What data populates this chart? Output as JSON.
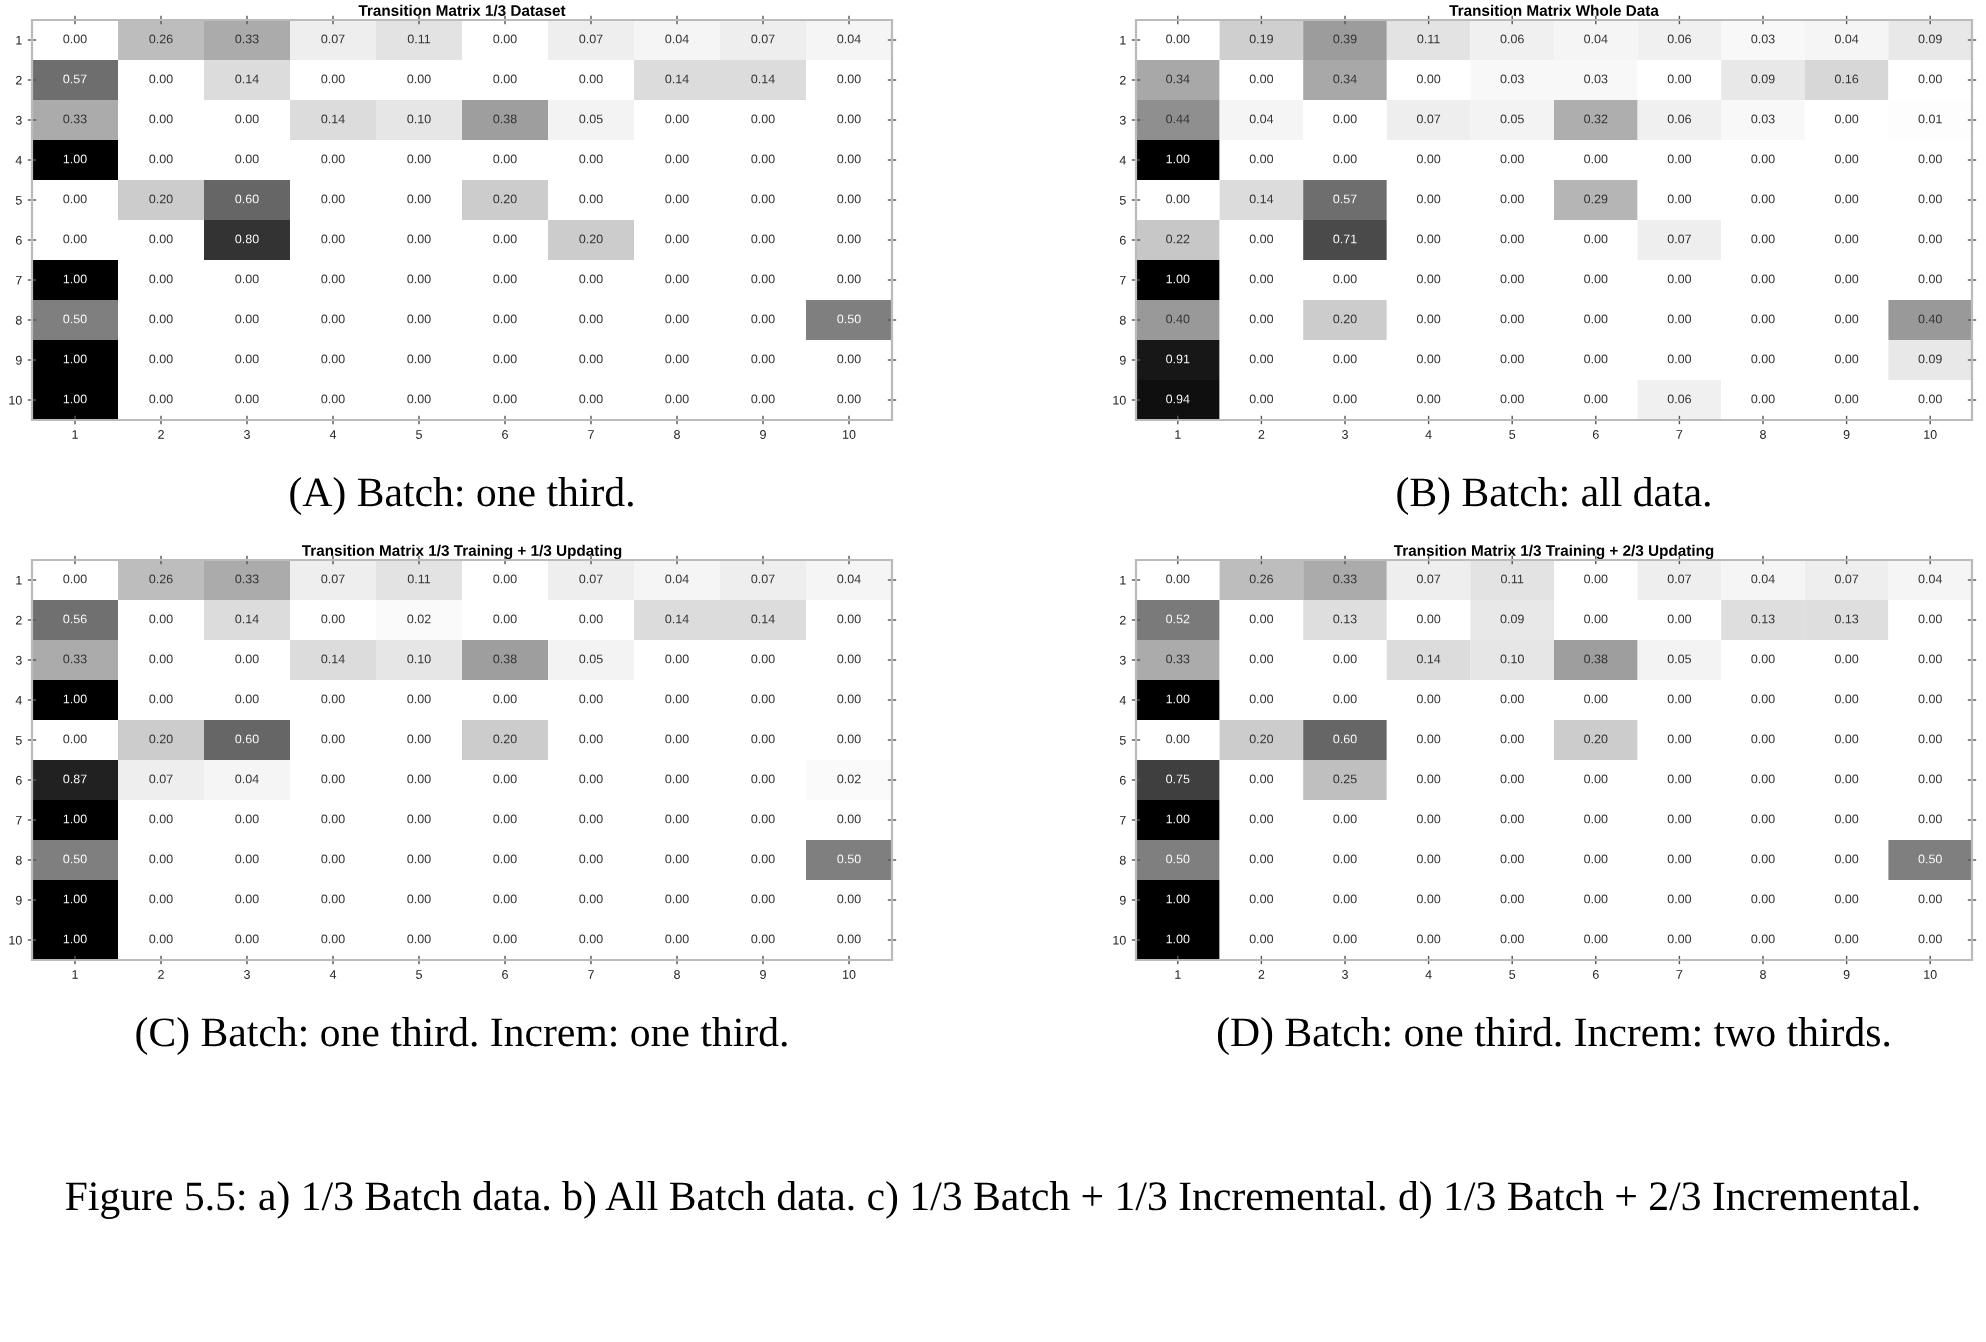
{
  "chart_data": [
    {
      "type": "heatmap",
      "title": "Transition Matrix 1/3 Dataset",
      "categories": [
        "1",
        "2",
        "3",
        "4",
        "5",
        "6",
        "7",
        "8",
        "9",
        "10"
      ],
      "y_categories": [
        "1",
        "2",
        "3",
        "4",
        "5",
        "6",
        "7",
        "8",
        "9",
        "10"
      ],
      "annotations": [
        "(A) Batch: one third."
      ],
      "cells": [
        [
          0.0,
          0.26,
          0.33,
          0.07,
          0.11,
          0.0,
          0.07,
          0.04,
          0.07,
          0.04
        ],
        [
          0.57,
          0.0,
          0.14,
          0.0,
          0.0,
          0.0,
          0.0,
          0.14,
          0.14,
          0.0
        ],
        [
          0.33,
          0.0,
          0.0,
          0.14,
          0.1,
          0.38,
          0.05,
          0.0,
          0.0,
          0.0
        ],
        [
          1.0,
          0.0,
          0.0,
          0.0,
          0.0,
          0.0,
          0.0,
          0.0,
          0.0,
          0.0
        ],
        [
          0.0,
          0.2,
          0.6,
          0.0,
          0.0,
          0.2,
          0.0,
          0.0,
          0.0,
          0.0
        ],
        [
          0.0,
          0.0,
          0.8,
          0.0,
          0.0,
          0.0,
          0.2,
          0.0,
          0.0,
          0.0
        ],
        [
          1.0,
          0.0,
          0.0,
          0.0,
          0.0,
          0.0,
          0.0,
          0.0,
          0.0,
          0.0
        ],
        [
          0.5,
          0.0,
          0.0,
          0.0,
          0.0,
          0.0,
          0.0,
          0.0,
          0.0,
          0.5
        ],
        [
          1.0,
          0.0,
          0.0,
          0.0,
          0.0,
          0.0,
          0.0,
          0.0,
          0.0,
          0.0
        ],
        [
          1.0,
          0.0,
          0.0,
          0.0,
          0.0,
          0.0,
          0.0,
          0.0,
          0.0,
          0.0
        ]
      ],
      "cell_labels": [
        [
          "0.00",
          "0.26",
          "0.33",
          "0.07",
          "0.11",
          "0.00",
          "0.07",
          "0.04",
          "0.07",
          "0.04"
        ],
        [
          "0.57",
          "0.00",
          "0.14",
          "0.00",
          "0.00",
          "0.00",
          "0.00",
          "0.14",
          "0.14",
          "0.00"
        ],
        [
          "0.33",
          "0.00",
          "0.00",
          "0.14",
          "0.10",
          "0.38",
          "0.05",
          "0.00",
          "0.00",
          "0.00"
        ],
        [
          "1.00",
          "0.00",
          "0.00",
          "0.00",
          "0.00",
          "0.00",
          "0.00",
          "0.00",
          "0.00",
          "0.00"
        ],
        [
          "0.00",
          "0.20",
          "0.60",
          "0.00",
          "0.00",
          "0.20",
          "0.00",
          "0.00",
          "0.00",
          "0.00"
        ],
        [
          "0.00",
          "0.00",
          "0.80",
          "0.00",
          "0.00",
          "0.00",
          "0.20",
          "0.00",
          "0.00",
          "0.00"
        ],
        [
          "1.00",
          "0.00",
          "0.00",
          "0.00",
          "0.00",
          "0.00",
          "0.00",
          "0.00",
          "0.00",
          "0.00"
        ],
        [
          "0.50",
          "0.00",
          "0.00",
          "0.00",
          "0.00",
          "0.00",
          "0.00",
          "0.00",
          "0.00",
          "0.50"
        ],
        [
          "1.00",
          "0.00",
          "0.00",
          "0.00",
          "0.00",
          "0.00",
          "0.00",
          "0.00",
          "0.00",
          "0.00"
        ],
        [
          "1.00",
          "0.00",
          "0.00",
          "0.00",
          "0.00",
          "0.00",
          "0.00",
          "0.00",
          "0.00",
          "0.00"
        ]
      ]
    },
    {
      "type": "heatmap",
      "title": "Transition Matrix Whole Data",
      "categories": [
        "1",
        "2",
        "3",
        "4",
        "5",
        "6",
        "7",
        "8",
        "9",
        "10"
      ],
      "y_categories": [
        "1",
        "2",
        "3",
        "4",
        "5",
        "6",
        "7",
        "8",
        "9",
        "10"
      ],
      "annotations": [
        "(B) Batch: all data."
      ],
      "cells": [
        [
          0.0,
          0.19,
          0.39,
          0.11,
          0.06,
          0.04,
          0.06,
          0.03,
          0.04,
          0.09
        ],
        [
          0.34,
          0.0,
          0.34,
          0.0,
          0.03,
          0.03,
          0.0,
          0.09,
          0.16,
          0.0
        ],
        [
          0.44,
          0.04,
          0.0,
          0.07,
          0.05,
          0.32,
          0.06,
          0.03,
          0.0,
          0.01
        ],
        [
          1.0,
          0.0,
          0.0,
          0.0,
          0.0,
          0.0,
          0.0,
          0.0,
          0.0,
          0.0
        ],
        [
          0.0,
          0.14,
          0.57,
          0.0,
          0.0,
          0.29,
          0.0,
          0.0,
          0.0,
          0.0
        ],
        [
          0.22,
          0.0,
          0.71,
          0.0,
          0.0,
          0.0,
          0.07,
          0.0,
          0.0,
          0.0
        ],
        [
          1.0,
          0.0,
          0.0,
          0.0,
          0.0,
          0.0,
          0.0,
          0.0,
          0.0,
          0.0
        ],
        [
          0.4,
          0.0,
          0.2,
          0.0,
          0.0,
          0.0,
          0.0,
          0.0,
          0.0,
          0.4
        ],
        [
          0.91,
          0.0,
          0.0,
          0.0,
          0.0,
          0.0,
          0.0,
          0.0,
          0.0,
          0.09
        ],
        [
          0.94,
          0.0,
          0.0,
          0.0,
          0.0,
          0.0,
          0.06,
          0.0,
          0.0,
          0.0
        ]
      ],
      "cell_labels": [
        [
          "0.00",
          "0.19",
          "0.39",
          "0.11",
          "0.06",
          "0.04",
          "0.06",
          "0.03",
          "0.04",
          "0.09"
        ],
        [
          "0.34",
          "0.00",
          "0.34",
          "0.00",
          "0.03",
          "0.03",
          "0.00",
          "0.09",
          "0.16",
          "0.00"
        ],
        [
          "0.44",
          "0.04",
          "0.00",
          "0.07",
          "0.05",
          "0.32",
          "0.06",
          "0.03",
          "0.00",
          "0.01"
        ],
        [
          "1.00",
          "0.00",
          "0.00",
          "0.00",
          "0.00",
          "0.00",
          "0.00",
          "0.00",
          "0.00",
          "0.00"
        ],
        [
          "0.00",
          "0.14",
          "0.57",
          "0.00",
          "0.00",
          "0.29",
          "0.00",
          "0.00",
          "0.00",
          "0.00"
        ],
        [
          "0.22",
          "0.00",
          "0.71",
          "0.00",
          "0.00",
          "0.00",
          "0.07",
          "0.00",
          "0.00",
          "0.00"
        ],
        [
          "1.00",
          "0.00",
          "0.00",
          "0.00",
          "0.00",
          "0.00",
          "0.00",
          "0.00",
          "0.00",
          "0.00"
        ],
        [
          "0.40",
          "0.00",
          "0.20",
          "0.00",
          "0.00",
          "0.00",
          "0.00",
          "0.00",
          "0.00",
          "0.40"
        ],
        [
          "0.91",
          "0.00",
          "0.00",
          "0.00",
          "0.00",
          "0.00",
          "0.00",
          "0.00",
          "0.00",
          "0.09"
        ],
        [
          "0.94",
          "0.00",
          "0.00",
          "0.00",
          "0.00",
          "0.00",
          "0.06",
          "0.00",
          "0.00",
          "0.00"
        ]
      ]
    },
    {
      "type": "heatmap",
      "title": "Transition Matrix 1/3 Training + 1/3 Updating",
      "categories": [
        "1",
        "2",
        "3",
        "4",
        "5",
        "6",
        "7",
        "8",
        "9",
        "10"
      ],
      "y_categories": [
        "1",
        "2",
        "3",
        "4",
        "5",
        "6",
        "7",
        "8",
        "9",
        "10"
      ],
      "annotations": [
        "(C) Batch: one third. Increm: one third."
      ],
      "cells": [
        [
          0.0,
          0.26,
          0.33,
          0.07,
          0.11,
          0.0,
          0.07,
          0.04,
          0.07,
          0.04
        ],
        [
          0.56,
          0.0,
          0.14,
          0.0,
          0.02,
          0.0,
          0.0,
          0.14,
          0.14,
          0.0
        ],
        [
          0.33,
          0.0,
          0.0,
          0.14,
          0.1,
          0.38,
          0.05,
          0.0,
          0.0,
          0.0
        ],
        [
          1.0,
          0.0,
          0.0,
          0.0,
          0.0,
          0.0,
          0.0,
          0.0,
          0.0,
          0.0
        ],
        [
          0.0,
          0.2,
          0.6,
          0.0,
          0.0,
          0.2,
          0.0,
          0.0,
          0.0,
          0.0
        ],
        [
          0.87,
          0.07,
          0.04,
          0.0,
          0.0,
          0.0,
          0.0,
          0.0,
          0.0,
          0.02
        ],
        [
          1.0,
          0.0,
          0.0,
          0.0,
          0.0,
          0.0,
          0.0,
          0.0,
          0.0,
          0.0
        ],
        [
          0.5,
          0.0,
          0.0,
          0.0,
          0.0,
          0.0,
          0.0,
          0.0,
          0.0,
          0.5
        ],
        [
          1.0,
          0.0,
          0.0,
          0.0,
          0.0,
          0.0,
          0.0,
          0.0,
          0.0,
          0.0
        ],
        [
          1.0,
          0.0,
          0.0,
          0.0,
          0.0,
          0.0,
          0.0,
          0.0,
          0.0,
          0.0
        ]
      ],
      "cell_labels": [
        [
          "0.00",
          "0.26",
          "0.33",
          "0.07",
          "0.11",
          "0.00",
          "0.07",
          "0.04",
          "0.07",
          "0.04"
        ],
        [
          "0.56",
          "0.00",
          "0.14",
          "0.00",
          "0.02",
          "0.00",
          "0.00",
          "0.14",
          "0.14",
          "0.00"
        ],
        [
          "0.33",
          "0.00",
          "0.00",
          "0.14",
          "0.10",
          "0.38",
          "0.05",
          "0.00",
          "0.00",
          "0.00"
        ],
        [
          "1.00",
          "0.00",
          "0.00",
          "0.00",
          "0.00",
          "0.00",
          "0.00",
          "0.00",
          "0.00",
          "0.00"
        ],
        [
          "0.00",
          "0.20",
          "0.60",
          "0.00",
          "0.00",
          "0.20",
          "0.00",
          "0.00",
          "0.00",
          "0.00"
        ],
        [
          "0.87",
          "0.07",
          "0.04",
          "0.00",
          "0.00",
          "0.00",
          "0.00",
          "0.00",
          "0.00",
          "0.02"
        ],
        [
          "1.00",
          "0.00",
          "0.00",
          "0.00",
          "0.00",
          "0.00",
          "0.00",
          "0.00",
          "0.00",
          "0.00"
        ],
        [
          "0.50",
          "0.00",
          "0.00",
          "0.00",
          "0.00",
          "0.00",
          "0.00",
          "0.00",
          "0.00",
          "0.50"
        ],
        [
          "1.00",
          "0.00",
          "0.00",
          "0.00",
          "0.00",
          "0.00",
          "0.00",
          "0.00",
          "0.00",
          "0.00"
        ],
        [
          "1.00",
          "0.00",
          "0.00",
          "0.00",
          "0.00",
          "0.00",
          "0.00",
          "0.00",
          "0.00",
          "0.00"
        ]
      ]
    },
    {
      "type": "heatmap",
      "title": "Transition Matrix 1/3 Training + 2/3 Updating",
      "categories": [
        "1",
        "2",
        "3",
        "4",
        "5",
        "6",
        "7",
        "8",
        "9",
        "10"
      ],
      "y_categories": [
        "1",
        "2",
        "3",
        "4",
        "5",
        "6",
        "7",
        "8",
        "9",
        "10"
      ],
      "annotations": [
        "(D) Batch: one third. Increm: two thirds.",
        "Figure 5.5: a) 1/3 Batch data. b) All Batch data. c) 1/3 Batch + 1/3 Incremental. d) 1/3 Batch + 2/3 Incremental."
      ],
      "cells": [
        [
          0.0,
          0.26,
          0.33,
          0.07,
          0.11,
          0.0,
          0.07,
          0.04,
          0.07,
          0.04
        ],
        [
          0.52,
          0.0,
          0.13,
          0.0,
          0.09,
          0.0,
          0.0,
          0.13,
          0.13,
          0.0
        ],
        [
          0.33,
          0.0,
          0.0,
          0.14,
          0.1,
          0.38,
          0.05,
          0.0,
          0.0,
          0.0
        ],
        [
          1.0,
          0.0,
          0.0,
          0.0,
          0.0,
          0.0,
          0.0,
          0.0,
          0.0,
          0.0
        ],
        [
          0.0,
          0.2,
          0.6,
          0.0,
          0.0,
          0.2,
          0.0,
          0.0,
          0.0,
          0.0
        ],
        [
          0.75,
          0.0,
          0.25,
          0.0,
          0.0,
          0.0,
          0.0,
          0.0,
          0.0,
          0.0
        ],
        [
          1.0,
          0.0,
          0.0,
          0.0,
          0.0,
          0.0,
          0.0,
          0.0,
          0.0,
          0.0
        ],
        [
          0.5,
          0.0,
          0.0,
          0.0,
          0.0,
          0.0,
          0.0,
          0.0,
          0.0,
          0.5
        ],
        [
          1.0,
          0.0,
          0.0,
          0.0,
          0.0,
          0.0,
          0.0,
          0.0,
          0.0,
          0.0
        ],
        [
          1.0,
          0.0,
          0.0,
          0.0,
          0.0,
          0.0,
          0.0,
          0.0,
          0.0,
          0.0
        ]
      ],
      "cell_labels": [
        [
          "0.00",
          "0.26",
          "0.33",
          "0.07",
          "0.11",
          "0.00",
          "0.07",
          "0.04",
          "0.07",
          "0.04"
        ],
        [
          "0.52",
          "0.00",
          "0.13",
          "0.00",
          "0.09",
          "0.00",
          "0.00",
          "0.13",
          "0.13",
          "0.00"
        ],
        [
          "0.33",
          "0.00",
          "0.00",
          "0.14",
          "0.10",
          "0.38",
          "0.05",
          "0.00",
          "0.00",
          "0.00"
        ],
        [
          "1.00",
          "0.00",
          "0.00",
          "0.00",
          "0.00",
          "0.00",
          "0.00",
          "0.00",
          "0.00",
          "0.00"
        ],
        [
          "0.00",
          "0.20",
          "0.60",
          "0.00",
          "0.00",
          "0.20",
          "0.00",
          "0.00",
          "0.00",
          "0.00"
        ],
        [
          "0.75",
          "0.00",
          "0.25",
          "0.00",
          "0.00",
          "0.00",
          "0.00",
          "0.00",
          "0.00",
          "0.00"
        ],
        [
          "1.00",
          "0.00",
          "0.00",
          "0.00",
          "0.00",
          "0.00",
          "0.00",
          "0.00",
          "0.00",
          "0.00"
        ],
        [
          "0.50",
          "0.00",
          "0.00",
          "0.00",
          "0.00",
          "0.00",
          "0.00",
          "0.00",
          "0.00",
          "0.50"
        ],
        [
          "1.00",
          "0.00",
          "0.00",
          "0.00",
          "0.00",
          "0.00",
          "0.00",
          "0.00",
          "0.00",
          "0.00"
        ],
        [
          "1.00",
          "0.00",
          "0.00",
          "0.00",
          "0.00",
          "0.00",
          "0.00",
          "0.00",
          "0.00",
          "0.00"
        ]
      ]
    }
  ]
}
